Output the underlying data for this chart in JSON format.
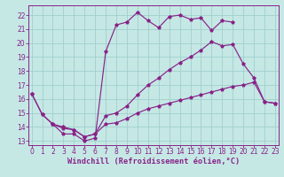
{
  "bg_color": "#c5e8e5",
  "grid_color": "#9fcfcc",
  "line_color": "#882288",
  "xlabel": "Windchill (Refroidissement éolien,°C)",
  "xlim": [
    -0.3,
    23.3
  ],
  "ylim": [
    12.7,
    22.7
  ],
  "xticks": [
    0,
    1,
    2,
    3,
    4,
    5,
    6,
    7,
    8,
    9,
    10,
    11,
    12,
    13,
    14,
    15,
    16,
    17,
    18,
    19,
    20,
    21,
    22,
    23
  ],
  "yticks": [
    13,
    14,
    15,
    16,
    17,
    18,
    19,
    20,
    21,
    22
  ],
  "tick_fontsize": 5.5,
  "xlabel_fontsize": 6.2,
  "line1_x": [
    0,
    1,
    2,
    3,
    4,
    5,
    6,
    7,
    8,
    9,
    10,
    11,
    12,
    13,
    14,
    15,
    16,
    17,
    18,
    19
  ],
  "line1_y": [
    16.4,
    14.9,
    14.2,
    13.5,
    13.5,
    13.0,
    13.2,
    19.4,
    21.3,
    21.5,
    22.2,
    21.6,
    21.1,
    21.9,
    22.0,
    21.7,
    21.8,
    20.9,
    21.6,
    21.5
  ],
  "line2_x": [
    0,
    1,
    2,
    3,
    4,
    5,
    6,
    7,
    8,
    9,
    10,
    11,
    12,
    13,
    14,
    15,
    16,
    17,
    18,
    19,
    20,
    21,
    22,
    23
  ],
  "line2_y": [
    16.4,
    14.9,
    14.2,
    14.0,
    13.8,
    13.3,
    13.5,
    14.8,
    15.0,
    15.5,
    16.3,
    17.0,
    17.5,
    18.1,
    18.6,
    19.0,
    19.5,
    20.1,
    19.8,
    19.9,
    18.5,
    17.5,
    15.8,
    15.7
  ],
  "line3_x": [
    2,
    3,
    4,
    5,
    6,
    7,
    8,
    9,
    10,
    11,
    12,
    13,
    14,
    15,
    16,
    17,
    18,
    19,
    20,
    21,
    22,
    23
  ],
  "line3_y": [
    14.2,
    13.9,
    13.8,
    13.3,
    13.5,
    14.2,
    14.3,
    14.6,
    15.0,
    15.3,
    15.5,
    15.7,
    15.9,
    16.1,
    16.3,
    16.5,
    16.7,
    16.9,
    17.0,
    17.2,
    15.8,
    15.7
  ]
}
